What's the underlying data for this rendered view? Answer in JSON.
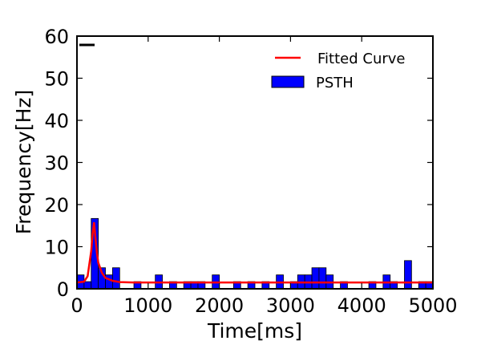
{
  "chart_data": {
    "type": "bar",
    "xlabel": "Time[ms]",
    "ylabel": "Frequency[Hz]",
    "xlim": [
      0,
      5000
    ],
    "ylim": [
      0,
      60
    ],
    "xticks": [
      0,
      1000,
      2000,
      3000,
      4000,
      5000
    ],
    "yticks": [
      0,
      10,
      20,
      30,
      40,
      50,
      60
    ],
    "grid": false,
    "legend_position": "top-right",
    "bin_width": 100,
    "series": [
      {
        "name": "PSTH",
        "kind": "histogram",
        "color": "#0000ff",
        "bin_starts": [
          0,
          100,
          200,
          300,
          400,
          500,
          600,
          700,
          800,
          900,
          1000,
          1100,
          1200,
          1300,
          1400,
          1500,
          1600,
          1700,
          1800,
          1900,
          2000,
          2100,
          2200,
          2300,
          2400,
          2500,
          2600,
          2700,
          2800,
          2900,
          3000,
          3100,
          3200,
          3300,
          3400,
          3500,
          3600,
          3700,
          3800,
          3900,
          4000,
          4100,
          4200,
          4300,
          4400,
          4500,
          4600,
          4700,
          4800,
          4900
        ],
        "values": [
          3.3,
          1.7,
          16.7,
          5,
          3.3,
          5,
          0,
          0,
          1.7,
          0,
          0,
          3.3,
          0,
          1.7,
          0,
          1.7,
          1.7,
          1.7,
          0,
          3.3,
          0,
          0,
          1.7,
          0,
          1.7,
          0,
          1.7,
          0,
          3.3,
          0,
          1.7,
          3.3,
          3.3,
          5,
          5,
          3.3,
          0,
          1.7,
          0,
          0,
          0,
          1.7,
          0,
          3.3,
          1.7,
          0,
          6.7,
          0,
          1.7,
          1.7
        ]
      },
      {
        "name": "Fitted Curve",
        "kind": "line",
        "color": "#ff0000",
        "x": [
          0,
          100,
          150,
          200,
          220,
          240,
          260,
          280,
          300,
          350,
          400,
          500,
          600,
          800,
          1000,
          2000,
          3000,
          4000,
          5000
        ],
        "y": [
          1.5,
          1.7,
          3,
          9,
          13,
          15.8,
          12,
          8.5,
          6.2,
          3.8,
          2.6,
          1.9,
          1.6,
          1.5,
          1.5,
          1.5,
          1.5,
          1.5,
          1.5
        ]
      }
    ]
  }
}
